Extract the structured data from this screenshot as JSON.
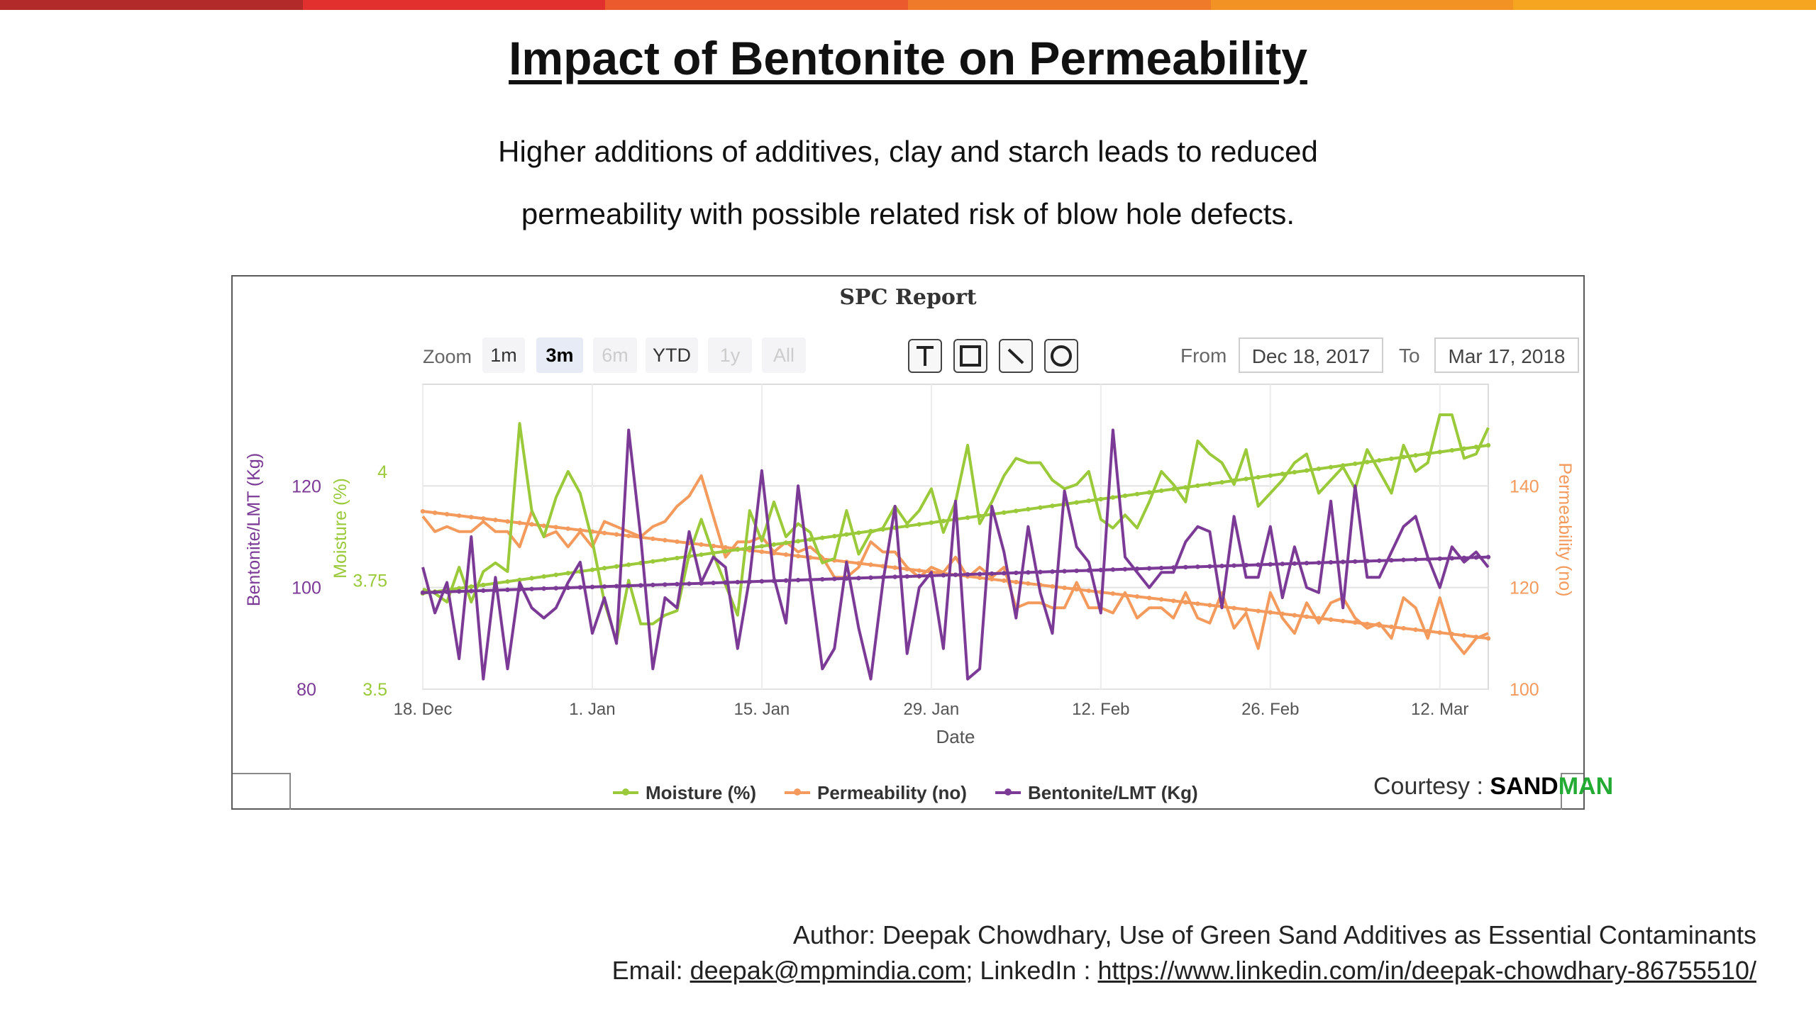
{
  "topbar_colors": [
    "#b32a2a",
    "#e2302f",
    "#ea5a2c",
    "#ef7a2a",
    "#f29225",
    "#f5a51f"
  ],
  "slide": {
    "title": "Impact of Bentonite on Permeability",
    "subtitle_line1": "Higher additions of additives, clay and starch leads to reduced",
    "subtitle_line2": "permeability with possible related risk of blow hole defects.",
    "author": "Author: Deepak Chowdhary, Use of Green Sand Additives as Essential Contaminants",
    "email_label": "Email: ",
    "email": "deepak@mpmindia.com",
    "linkedin_label": "; LinkedIn : ",
    "linkedin": "https://www.linkedin.com/in/deepak-chowdhary-86755510/",
    "courtesy_label": "Courtesy : ",
    "courtesy_brand_1": "SAND",
    "courtesy_brand_2": "MAN"
  },
  "toolbar": {
    "zoom_label": "Zoom",
    "zoom_buttons": [
      {
        "label": "1m",
        "state": "normal"
      },
      {
        "label": "3m",
        "state": "selected"
      },
      {
        "label": "6m",
        "state": "disabled"
      },
      {
        "label": "YTD",
        "state": "normal"
      },
      {
        "label": "1y",
        "state": "disabled"
      },
      {
        "label": "All",
        "state": "disabled"
      }
    ],
    "tools": [
      "text-tool-icon",
      "rectangle-tool-icon",
      "line-tool-icon",
      "circle-tool-icon"
    ],
    "from_label": "From",
    "from_value": "Dec 18, 2017",
    "to_label": "To",
    "to_value": "Mar 17, 2018"
  },
  "chart_data": {
    "type": "line",
    "title": "SPC Report",
    "xlabel": "Date",
    "x_range_days": [
      0,
      88
    ],
    "x_ticks": [
      {
        "label": "18. Dec",
        "day": 0
      },
      {
        "label": "1. Jan",
        "day": 14
      },
      {
        "label": "15. Jan",
        "day": 28
      },
      {
        "label": "29. Jan",
        "day": 42
      },
      {
        "label": "12. Feb",
        "day": 56
      },
      {
        "label": "26. Feb",
        "day": 70
      },
      {
        "label": "12. Mar",
        "day": 84
      }
    ],
    "axes": {
      "bentonite": {
        "label": "Bentonite/LMT (Kg)",
        "range": [
          80,
          140
        ],
        "ticks": [
          "80",
          "100",
          "120"
        ],
        "color": "#7b3a96"
      },
      "moisture": {
        "label": "Moisture (%)",
        "range": [
          3.5,
          4.2
        ],
        "ticks": [
          "3.5",
          "3.75",
          "4"
        ],
        "color": "#9ac93a"
      },
      "permeability": {
        "label": "Permeability (no)",
        "range": [
          100,
          160
        ],
        "ticks": [
          "100",
          "120",
          "140"
        ],
        "color": "#f39a5c"
      }
    },
    "grid": true,
    "legend_position": "bottom-center",
    "series": [
      {
        "name": "Moisture (%)",
        "axis": "moisture",
        "color": "#9ac93a",
        "values": [
          3.73,
          3.72,
          3.7,
          3.78,
          3.7,
          3.77,
          3.79,
          3.77,
          4.11,
          3.91,
          3.85,
          3.94,
          4.0,
          3.95,
          3.84,
          3.7,
          3.61,
          3.75,
          3.65,
          3.65,
          3.67,
          3.68,
          3.81,
          3.89,
          3.81,
          3.74,
          3.67,
          3.91,
          3.84,
          3.93,
          3.85,
          3.88,
          3.86,
          3.79,
          3.8,
          3.91,
          3.81,
          3.86,
          3.87,
          3.92,
          3.88,
          3.91,
          3.96,
          3.86,
          3.93,
          4.06,
          3.88,
          3.93,
          3.99,
          4.03,
          4.02,
          4.02,
          3.98,
          3.96,
          3.97,
          4.0,
          3.89,
          3.87,
          3.9,
          3.87,
          3.93,
          4.0,
          3.97,
          3.93,
          4.07,
          4.04,
          4.02,
          3.97,
          4.05,
          3.92,
          3.95,
          3.98,
          4.02,
          4.04,
          3.95,
          3.98,
          4.01,
          3.96,
          4.05,
          4.0,
          3.95,
          4.06,
          4.0,
          4.02,
          4.13,
          4.13,
          4.03,
          4.04,
          4.1
        ],
        "trend": [
          3.72,
          4.06
        ]
      },
      {
        "name": "Permeability (no)",
        "axis": "permeability",
        "color": "#f39a5c",
        "values": [
          134,
          131,
          132,
          131,
          131,
          133,
          131,
          131,
          128,
          135,
          130,
          131,
          128,
          131,
          128,
          133,
          132,
          131,
          130,
          132,
          133,
          136,
          138,
          142,
          134,
          126,
          129,
          129,
          130,
          127,
          129,
          127,
          128,
          126,
          122,
          122,
          124,
          129,
          127,
          127,
          124,
          122,
          124,
          123,
          126,
          122,
          124,
          122,
          124,
          116,
          117,
          117,
          116,
          116,
          121,
          116,
          116,
          115,
          119,
          114,
          116,
          116,
          114,
          119,
          114,
          113,
          119,
          112,
          115,
          108,
          119,
          114,
          111,
          117,
          113,
          117,
          118,
          114,
          112,
          113,
          110,
          118,
          116,
          110,
          118,
          110,
          107,
          110,
          111
        ],
        "trend": [
          135,
          110
        ]
      },
      {
        "name": "Bentonite/LMT (Kg)",
        "axis": "bentonite",
        "color": "#7b3a96",
        "values": [
          104,
          95,
          101,
          86,
          110,
          82,
          102,
          84,
          101,
          96,
          94,
          96,
          101,
          105,
          91,
          98,
          89,
          131,
          110,
          84,
          98,
          96,
          111,
          101,
          106,
          104,
          88,
          102,
          123,
          102,
          93,
          120,
          102,
          84,
          88,
          105,
          92,
          82,
          101,
          116,
          87,
          100,
          103,
          88,
          117,
          82,
          84,
          116,
          107,
          94,
          112,
          99,
          91,
          119,
          108,
          105,
          95,
          131,
          106,
          103,
          100,
          103,
          103,
          109,
          112,
          111,
          96,
          114,
          102,
          102,
          112,
          98,
          108,
          100,
          99,
          117,
          96,
          120,
          102,
          102,
          107,
          112,
          114,
          106,
          100,
          108,
          105,
          107,
          104
        ],
        "trend": [
          99,
          106
        ]
      }
    ]
  }
}
